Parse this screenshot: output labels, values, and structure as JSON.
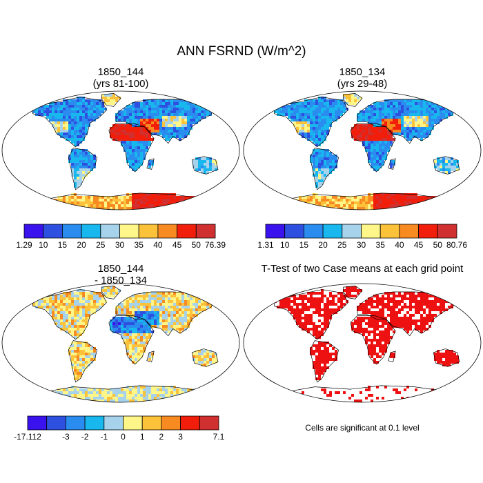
{
  "figure_title": "ANN FSRND (W/m^2)",
  "panels": [
    {
      "title_line1": "1850_144",
      "title_line2": "(yrs 81-100)"
    },
    {
      "title_line1": "1850_134",
      "title_line2": "(yrs 29-48)"
    },
    {
      "title_line1": "1850_144",
      "title_line2": "- 1850_134"
    },
    {
      "title_line1": "T-Test of two Case means at each grid point",
      "title_line2": ""
    }
  ],
  "significance_note": "Cells are significant at 0.1 level",
  "colors": {
    "seq": [
      "#3a12ee",
      "#2e50e0",
      "#2a8cee",
      "#18b8ee",
      "#a6d2ec",
      "#fff68a",
      "#fcc23a",
      "#f78a20",
      "#f01e0a",
      "#d03030"
    ],
    "div": [
      "#3a12ee",
      "#2e50e0",
      "#2a8cee",
      "#18b8ee",
      "#a6d2ec",
      "#fff68a",
      "#fcc23a",
      "#f78a20",
      "#f01e0a",
      "#d03030"
    ],
    "significant": "#ee1111"
  },
  "chart_data": [
    {
      "type": "heatmap",
      "map": "global",
      "title": "1850_144 (yrs 81-100)",
      "colorbar_labels": [
        "1.29",
        "10",
        "15",
        "20",
        "25",
        "30",
        "35",
        "40",
        "45",
        "50",
        "76.39"
      ],
      "min": 1.29,
      "max": 76.39
    },
    {
      "type": "heatmap",
      "map": "global",
      "title": "1850_134 (yrs 29-48)",
      "colorbar_labels": [
        "1.31",
        "10",
        "15",
        "20",
        "25",
        "30",
        "35",
        "40",
        "45",
        "50",
        "80.76"
      ],
      "min": 1.31,
      "max": 80.76
    },
    {
      "type": "heatmap",
      "map": "global",
      "title": "1850_144 - 1850_134",
      "colorbar_labels": [
        "-17.112",
        "",
        "-3",
        "-2",
        "-1",
        "0",
        "1",
        "2",
        "3",
        "",
        "7.1"
      ],
      "min": -17.112,
      "max": 7.1
    },
    {
      "type": "heatmap",
      "map": "global",
      "title": "T-Test of two Case means at each grid point",
      "note": "Cells are significant at 0.1 level"
    }
  ]
}
